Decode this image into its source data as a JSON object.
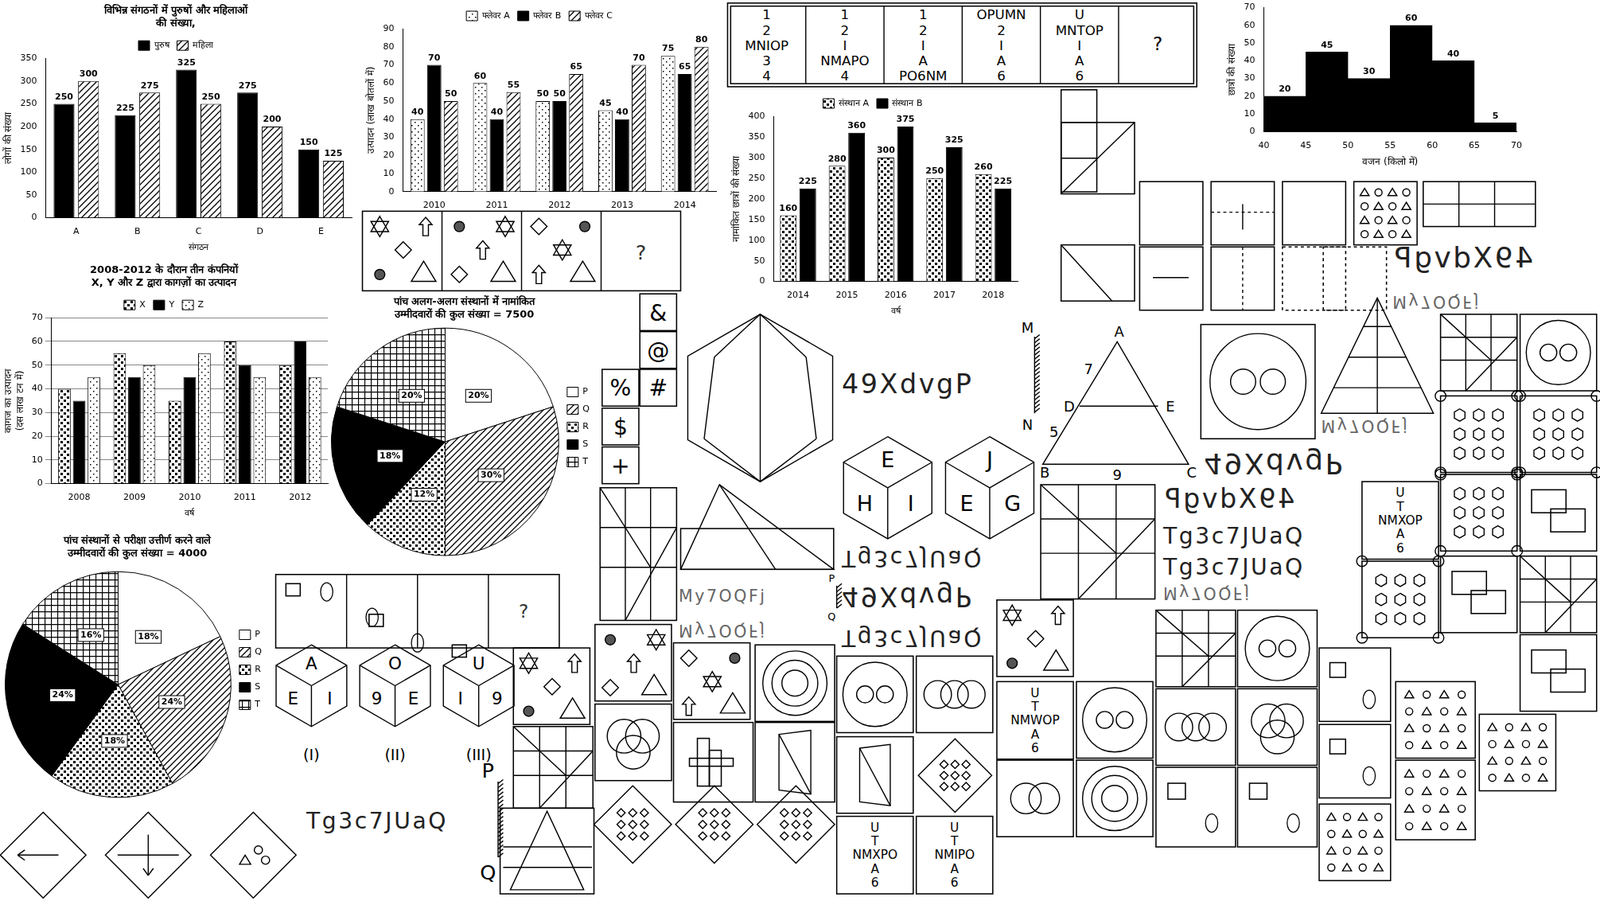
{
  "chart_data": [
    {
      "type": "bar",
      "title": [
        "विभिन्न संगठनों में पुरुषों और महिलाओं",
        "की संख्या,"
      ],
      "categories": [
        "A",
        "B",
        "C",
        "D",
        "E"
      ],
      "series": [
        {
          "name": "पुरुष",
          "color": "#000000",
          "values": [
            250,
            225,
            325,
            275,
            150
          ]
        },
        {
          "name": "महिला",
          "color": "#ffffff",
          "values": [
            300,
            275,
            250,
            200,
            125
          ]
        }
      ],
      "ylim": [
        0,
        350
      ],
      "yticks": [
        0,
        50,
        100,
        150,
        200,
        250,
        300,
        350
      ],
      "y_label": "लोगों की संख्या",
      "x_label": "संगठन",
      "legend": "top",
      "data_labels": true,
      "grid": false
    },
    {
      "type": "bar",
      "categories": [
        "2010",
        "2011",
        "2012",
        "2013",
        "2014"
      ],
      "series": [
        {
          "name": "फ्लेवर A",
          "color": "#ffffff",
          "values": [
            40,
            60,
            50,
            45,
            75
          ]
        },
        {
          "name": "फ्लेवर B",
          "color": "#000000",
          "values": [
            70,
            40,
            50,
            40,
            65
          ]
        },
        {
          "name": "फ्लेवर C",
          "color": "#ffffff",
          "values": [
            50,
            55,
            65,
            70,
            80
          ]
        }
      ],
      "ylim": [
        0,
        90
      ],
      "yticks": [
        0,
        10,
        20,
        30,
        40,
        50,
        60,
        70,
        80,
        90
      ],
      "y_label": "उत्पादन (लाख बोतलों में)",
      "legend": "top",
      "data_labels": true,
      "grid": false
    },
    {
      "type": "bar",
      "title": [
        "2008-2012 के दौरान तीन कंपनियों",
        "X, Y और Z द्वारा कागज़ों का उत्पादन"
      ],
      "categories": [
        "2008",
        "2009",
        "2010",
        "2011",
        "2012"
      ],
      "series": [
        {
          "name": "X",
          "color": "#ffffff",
          "values": [
            40,
            55,
            35,
            60,
            50
          ]
        },
        {
          "name": "Y",
          "color": "#000000",
          "values": [
            35,
            45,
            45,
            50,
            60
          ]
        },
        {
          "name": "Z",
          "color": "#ffffff",
          "values": [
            45,
            50,
            55,
            45,
            45
          ]
        }
      ],
      "ylim": [
        0,
        70
      ],
      "yticks": [
        0,
        10,
        20,
        30,
        40,
        50,
        60,
        70
      ],
      "y_label": [
        "कागज का उत्पादन",
        "(दस लाख टन में)"
      ],
      "x_label": "वर्ष",
      "legend": "top",
      "data_labels": false,
      "grid": true
    },
    {
      "type": "pie",
      "title": [
        "पांच अलग-अलग संस्थानों में नामांकित",
        "उम्मीदवारों की कुल संख्या = 7500"
      ],
      "categories": [
        "P",
        "Q",
        "R",
        "S",
        "T"
      ],
      "values": [
        20,
        30,
        12,
        18,
        20
      ],
      "value_labels": [
        "20%",
        "30%",
        "12%",
        "18%",
        "20%"
      ],
      "colors": [
        "#ffffff",
        "#ffffff",
        "#ffffff",
        "#000000",
        "#ffffff"
      ],
      "legend": "right",
      "data_labels": true
    },
    {
      "type": "pie",
      "title": [
        "पांच संस्थानों से परीक्षा उत्तीर्ण करने वाले",
        "उम्मीदवारों की कुल संख्या = 4000"
      ],
      "categories": [
        "P",
        "Q",
        "R",
        "S",
        "T"
      ],
      "values": [
        18,
        24,
        18,
        24,
        16
      ],
      "value_labels": [
        "18%",
        "24%",
        "18%",
        "24%",
        "16%"
      ],
      "colors": [
        "#ffffff",
        "#ffffff",
        "#ffffff",
        "#000000",
        "#ffffff"
      ],
      "legend": "right",
      "data_labels": true
    },
    {
      "type": "bar",
      "categories": [
        "2014",
        "2015",
        "2016",
        "2017",
        "2018"
      ],
      "series": [
        {
          "name": "संस्थान A",
          "color": "#ffffff",
          "values": [
            160,
            280,
            300,
            250,
            260
          ]
        },
        {
          "name": "संस्थान B",
          "color": "#000000",
          "values": [
            225,
            360,
            375,
            325,
            225
          ]
        }
      ],
      "ylim": [
        0,
        400
      ],
      "yticks": [
        0,
        50,
        100,
        150,
        200,
        250,
        300,
        350,
        400
      ],
      "y_label": "नामांकित छात्रों की संख्या",
      "x_label": "वर्ष",
      "legend": "top",
      "data_labels": true,
      "grid": false
    },
    {
      "type": "histogram",
      "bins": [
        40,
        45,
        50,
        55,
        60,
        65,
        70
      ],
      "values": [
        20,
        45,
        30,
        60,
        40,
        5
      ],
      "color": "#000000",
      "xlim": [
        40,
        70
      ],
      "xticks": [
        40,
        45,
        50,
        55,
        60,
        65,
        70
      ],
      "ylim": [
        0,
        70
      ],
      "yticks": [
        0,
        10,
        20,
        30,
        40,
        50,
        60,
        70
      ],
      "y_label": "छात्रों की संख्या",
      "x_label": "वजन (किलो में)",
      "data_labels": true,
      "grid": false
    }
  ],
  "letter_puzzle": [
    [
      "1",
      "2",
      "MNIOP",
      "3",
      "4"
    ],
    [
      "1",
      "2",
      "I",
      "NMAPO",
      "4"
    ],
    [
      "1",
      "2",
      "I",
      "A",
      "PO6NM"
    ],
    [
      "OPUMN",
      "2",
      "I",
      "A",
      "6"
    ],
    [
      "U",
      "MNTOP",
      "I",
      "A",
      "6"
    ],
    [
      "?"
    ]
  ],
  "letter_options": [
    [
      "U",
      "T",
      "NMXOP",
      "A",
      "6"
    ],
    [
      "U",
      "T",
      "NMWOP",
      "A",
      "6"
    ],
    [
      "U",
      "T",
      "NMXPO",
      "A",
      "6"
    ],
    [
      "U",
      "T",
      "NMIPO",
      "A",
      "6"
    ]
  ],
  "symbols": [
    "&",
    "@",
    "%",
    "#",
    "$",
    "+"
  ],
  "cubes_top": [
    [
      "E",
      "H",
      "I"
    ],
    [
      "J",
      "E",
      "G"
    ]
  ],
  "cubes_bottom": {
    "faces": [
      [
        "A",
        "E",
        "I"
      ],
      [
        "O",
        "9",
        "E"
      ],
      [
        "U",
        "I",
        "9"
      ]
    ],
    "labels": [
      "(I)",
      "(II)",
      "(III)"
    ]
  },
  "triangle": {
    "vertices": [
      "A",
      "D",
      "E",
      "B",
      "C"
    ],
    "numbers": [
      "7",
      "5",
      "9"
    ]
  },
  "mirror_marks": [
    [
      "M",
      "N"
    ],
    [
      "P",
      "Q"
    ],
    [
      "P",
      "Q"
    ]
  ],
  "strings": [
    "49XdvgP",
    "49XdvgP",
    "49XdvgP",
    "49XdvgP",
    "49XdvgP",
    "Tg3c7JUaQ",
    "Tg3c7JUaQ",
    "Tg3c7JUaQ",
    "Tg3c7JUaQ",
    "Tg3c7JUaQ",
    "My7OQFj",
    "My7OQFj",
    "My7OQFj",
    "My7OQFj",
    "My7OQFj"
  ],
  "question_marks": [
    "?",
    "?"
  ]
}
